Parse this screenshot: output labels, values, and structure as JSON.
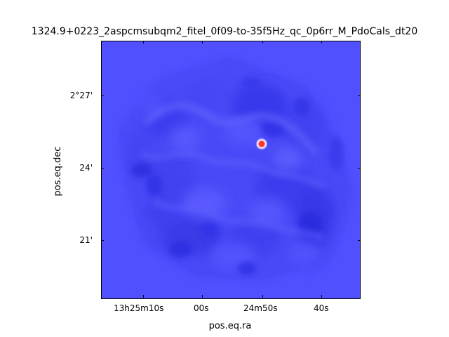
{
  "figure": {
    "title": "1324.9+0223_2aspcmsubqm2_fitel_0f09-to-35f5Hz_qc_0p6rr_M_PdoCals_dt20",
    "x_axis_title": "pos.eq.ra",
    "y_axis_title": "pos.eq.dec",
    "x_tick_labels": [
      "13h25m10s",
      "00s",
      "24m50s",
      "40s"
    ],
    "y_tick_labels": [
      "2°27'",
      "24'",
      "21'"
    ],
    "colors": {
      "background": "#5050ff",
      "source": "#ff3333",
      "source_ring": "#ffffff"
    }
  }
}
